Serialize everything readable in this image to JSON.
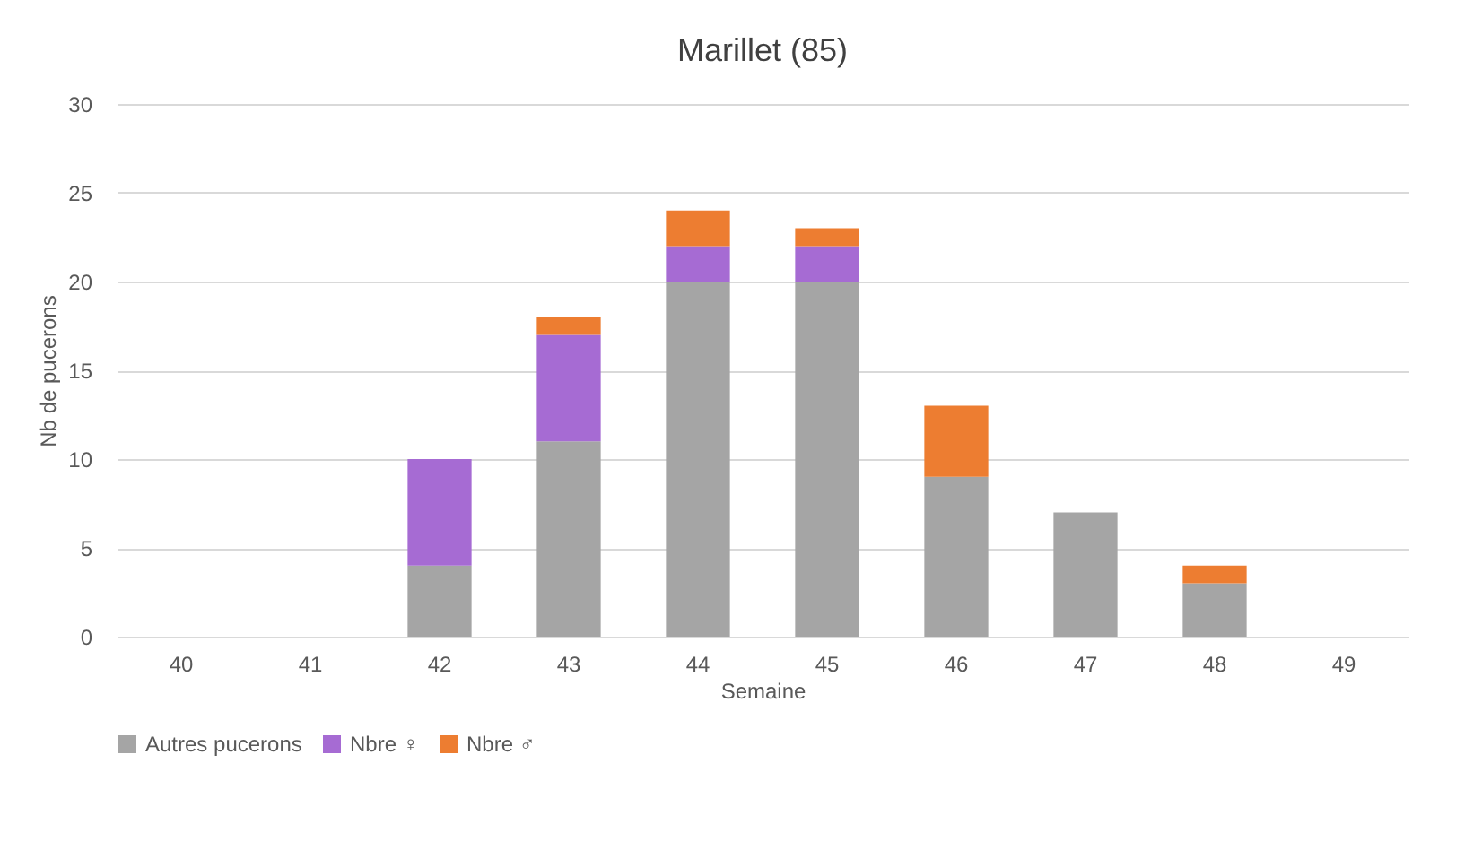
{
  "chart_data": {
    "type": "bar",
    "title": "Marillet (85)",
    "xlabel": "Semaine",
    "ylabel": "Nb de pucerons",
    "categories": [
      "40",
      "41",
      "42",
      "43",
      "44",
      "45",
      "46",
      "47",
      "48",
      "49"
    ],
    "stacked": true,
    "series": [
      {
        "name": "Autres pucerons",
        "color": "#a5a5a5",
        "values": [
          null,
          null,
          4,
          11,
          20,
          20,
          9,
          7,
          3,
          null
        ]
      },
      {
        "name": "Nbre ♀",
        "color": "#a66bd3",
        "values": [
          null,
          null,
          6,
          6,
          2,
          2,
          null,
          null,
          null,
          null
        ]
      },
      {
        "name": "Nbre ♂",
        "color": "#ed7d31",
        "values": [
          null,
          null,
          null,
          1,
          2,
          1,
          4,
          null,
          1,
          null
        ]
      }
    ],
    "ylim": [
      0,
      30
    ],
    "yticks": [
      0,
      5,
      10,
      15,
      20,
      25,
      30
    ],
    "grid": "y",
    "legend": "bottom"
  }
}
